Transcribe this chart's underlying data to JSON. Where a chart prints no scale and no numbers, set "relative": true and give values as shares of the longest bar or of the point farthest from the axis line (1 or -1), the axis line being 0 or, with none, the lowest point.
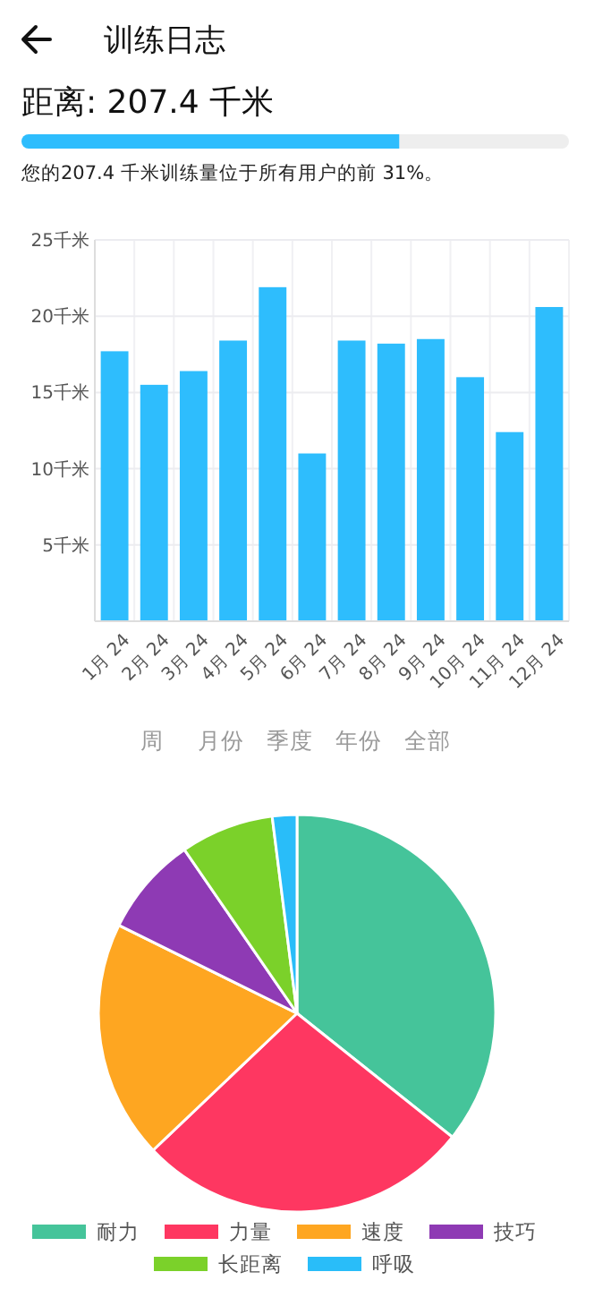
{
  "chart_data": [
    {
      "type": "bar",
      "orientation": "horizontal",
      "stacked": true,
      "relative": true,
      "title": "训练日志",
      "subtitle": "距离: 207.4 千米",
      "annotations": [
        "您的207.4 千米训练量位于所有用户的前 31%。"
      ],
      "categories": [
        null
      ],
      "series": [
        {
          "color": "#2ebdfd",
          "values": [
            0.69
          ]
        },
        {
          "color": "#eeeeee",
          "values": [
            0.31
          ]
        }
      ]
    },
    {
      "type": "bar",
      "categories": [
        "1月 24",
        "2月 24",
        "3月 24",
        "4月 24",
        "5月 24",
        "6月 24",
        "7月 24",
        "8月 24",
        "9月 24",
        "10月 24",
        "11月 24",
        "12月 24"
      ],
      "values": [
        17.7,
        15.5,
        16.4,
        18.4,
        21.9,
        11.0,
        18.4,
        18.2,
        18.5,
        16.0,
        12.4,
        20.6
      ],
      "color": "#2ebdfd",
      "ylim": [
        0,
        25
      ],
      "yticks": [
        {
          "value": 5,
          "label": "5千米"
        },
        {
          "value": 10,
          "label": "10千米"
        },
        {
          "value": 15,
          "label": "15千米"
        },
        {
          "value": 20,
          "label": "20千米"
        },
        {
          "value": 25,
          "label": "25千米"
        }
      ],
      "grid": true,
      "annotations": [
        "周",
        "月份",
        "季度",
        "年份",
        "全部"
      ]
    },
    {
      "type": "pie",
      "categories": [
        "耐力",
        "力量",
        "速度",
        "技巧",
        "长距离",
        "呼吸"
      ],
      "values": [
        35.7,
        27.2,
        19.4,
        8.1,
        7.6,
        2.0
      ],
      "colors": [
        "#45c49a",
        "#fe3761",
        "#fea621",
        "#8e3ab4",
        "#7bd12a",
        "#29bdf9"
      ],
      "legend": "bottom"
    }
  ]
}
